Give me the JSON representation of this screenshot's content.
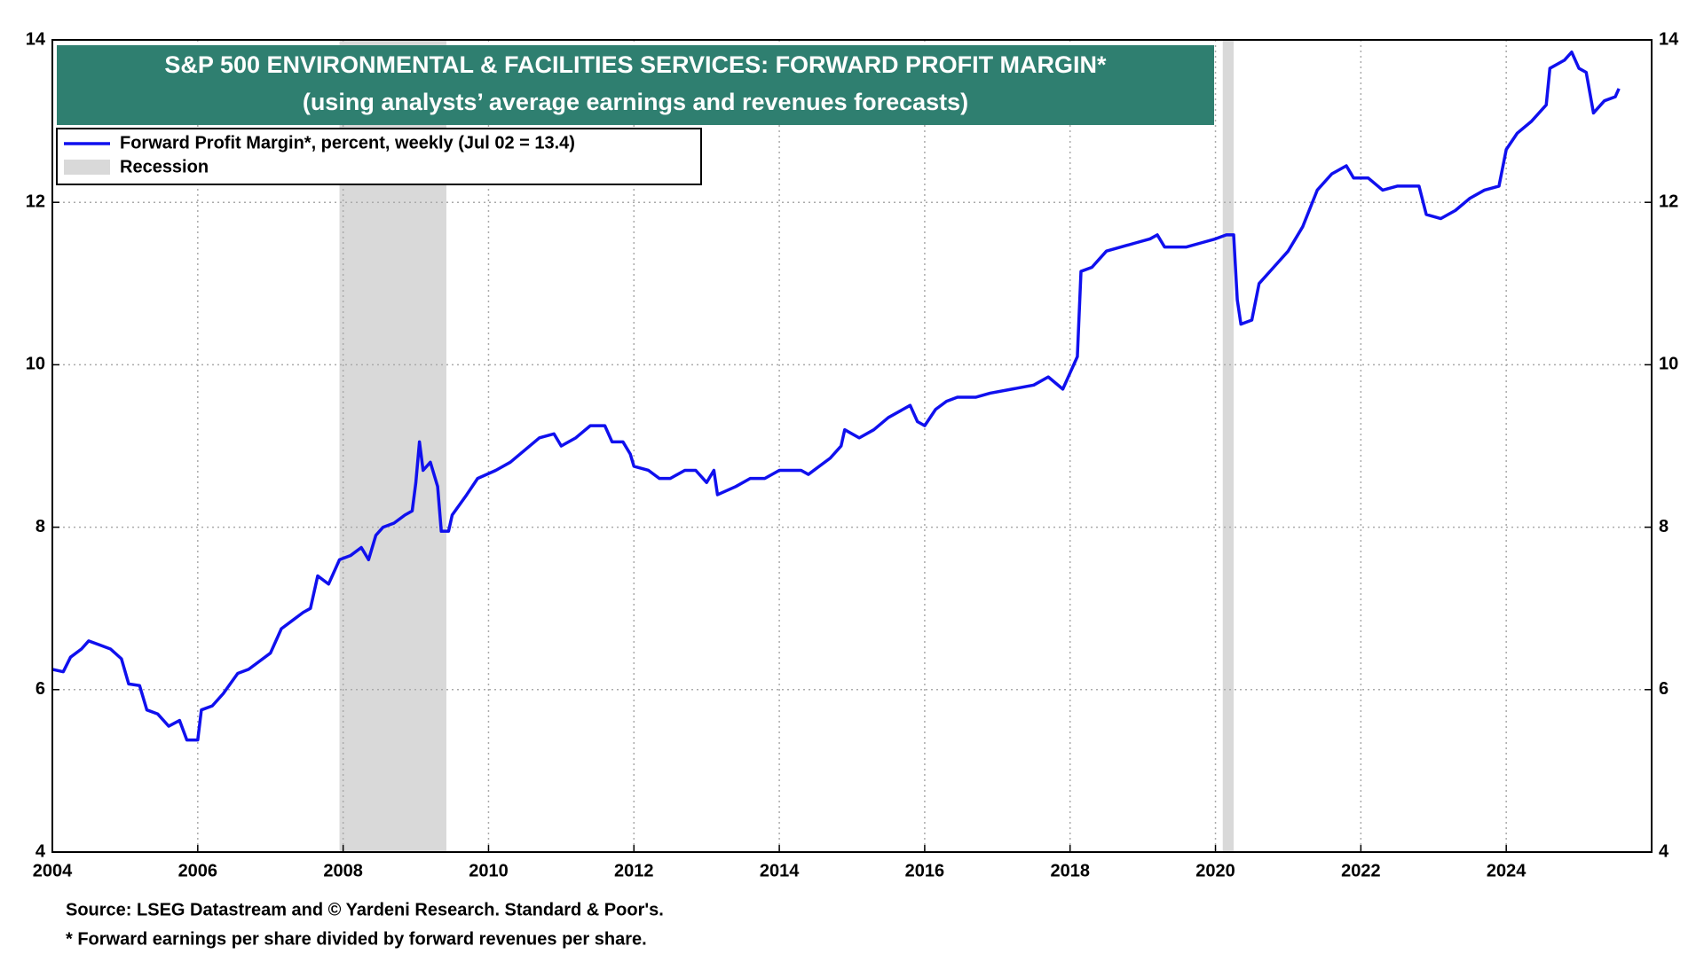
{
  "chart_data": {
    "type": "line",
    "title": "S&P 500 ENVIRONMENTAL & FACILITIES SERVICES: FORWARD PROFIT MARGIN*",
    "subtitle": "(using analysts’ average earnings and revenues forecasts)",
    "source": "Source: LSEG Datastream and © Yardeni Research. Standard & Poor's.",
    "footnote": "* Forward earnings per share divided by forward revenues per share.",
    "xlim": [
      2004,
      2026
    ],
    "xticks": [
      2004,
      2006,
      2008,
      2010,
      2012,
      2014,
      2016,
      2018,
      2020,
      2022,
      2024
    ],
    "ylim": [
      4,
      14
    ],
    "yticks": [
      4,
      6,
      8,
      10,
      12,
      14
    ],
    "grid": true,
    "legend": "top-left",
    "recession_name": "Recession",
    "recession_color": "#d9d9d9",
    "recessions": [
      {
        "start": 2007.95,
        "end": 2009.42
      },
      {
        "start": 2020.1,
        "end": 2020.25
      }
    ],
    "series": [
      {
        "name": "Forward Profit Margin*, percent, weekly (Jul 02 = 13.4)",
        "color": "#1010ee",
        "x": [
          2004.0,
          2004.15,
          2004.25,
          2004.4,
          2004.5,
          2004.65,
          2004.8,
          2004.95,
          2005.05,
          2005.2,
          2005.3,
          2005.45,
          2005.6,
          2005.75,
          2005.85,
          2006.0,
          2006.05,
          2006.2,
          2006.35,
          2006.55,
          2006.7,
          2006.85,
          2007.0,
          2007.15,
          2007.3,
          2007.45,
          2007.55,
          2007.65,
          2007.8,
          2007.95,
          2008.1,
          2008.25,
          2008.35,
          2008.45,
          2008.55,
          2008.7,
          2008.85,
          2008.95,
          2009.0,
          2009.05,
          2009.1,
          2009.2,
          2009.3,
          2009.35,
          2009.45,
          2009.5,
          2009.7,
          2009.85,
          2010.1,
          2010.3,
          2010.5,
          2010.7,
          2010.9,
          2011.0,
          2011.2,
          2011.4,
          2011.6,
          2011.7,
          2011.85,
          2011.95,
          2012.0,
          2012.2,
          2012.35,
          2012.5,
          2012.7,
          2012.85,
          2013.0,
          2013.1,
          2013.15,
          2013.4,
          2013.6,
          2013.8,
          2014.0,
          2014.3,
          2014.4,
          2014.55,
          2014.7,
          2014.85,
          2014.9,
          2015.1,
          2015.3,
          2015.5,
          2015.7,
          2015.8,
          2015.9,
          2016.0,
          2016.15,
          2016.3,
          2016.45,
          2016.7,
          2016.9,
          2017.2,
          2017.5,
          2017.7,
          2017.9,
          2018.0,
          2018.1,
          2018.15,
          2018.3,
          2018.5,
          2018.7,
          2018.9,
          2019.1,
          2019.2,
          2019.3,
          2019.6,
          2019.8,
          2020.0,
          2020.15,
          2020.25,
          2020.3,
          2020.35,
          2020.5,
          2020.6,
          2020.8,
          2021.0,
          2021.2,
          2021.4,
          2021.6,
          2021.8,
          2021.9,
          2022.1,
          2022.3,
          2022.5,
          2022.65,
          2022.8,
          2022.9,
          2023.1,
          2023.3,
          2023.5,
          2023.7,
          2023.9,
          2024.0,
          2024.15,
          2024.35,
          2024.55,
          2024.6,
          2024.8,
          2024.9,
          2025.0,
          2025.1,
          2025.2,
          2025.35,
          2025.5,
          2025.55
        ],
        "values": [
          6.25,
          6.22,
          6.4,
          6.5,
          6.6,
          6.55,
          6.5,
          6.38,
          6.07,
          6.05,
          5.75,
          5.7,
          5.55,
          5.62,
          5.38,
          5.38,
          5.75,
          5.8,
          5.95,
          6.2,
          6.25,
          6.35,
          6.45,
          6.75,
          6.85,
          6.95,
          7.0,
          7.4,
          7.3,
          7.6,
          7.65,
          7.75,
          7.6,
          7.9,
          8.0,
          8.05,
          8.15,
          8.2,
          8.55,
          9.05,
          8.7,
          8.8,
          8.5,
          7.95,
          7.95,
          8.15,
          8.4,
          8.6,
          8.7,
          8.8,
          8.95,
          9.1,
          9.15,
          9.0,
          9.1,
          9.25,
          9.25,
          9.05,
          9.05,
          8.9,
          8.75,
          8.7,
          8.6,
          8.6,
          8.7,
          8.7,
          8.55,
          8.7,
          8.4,
          8.5,
          8.6,
          8.6,
          8.7,
          8.7,
          8.65,
          8.75,
          8.85,
          9.0,
          9.2,
          9.1,
          9.2,
          9.35,
          9.45,
          9.5,
          9.3,
          9.25,
          9.45,
          9.55,
          9.6,
          9.6,
          9.65,
          9.7,
          9.75,
          9.85,
          9.7,
          9.9,
          10.1,
          11.15,
          11.2,
          11.4,
          11.45,
          11.5,
          11.55,
          11.6,
          11.45,
          11.45,
          11.5,
          11.55,
          11.6,
          11.6,
          10.8,
          10.5,
          10.55,
          11.0,
          11.2,
          11.4,
          11.7,
          12.15,
          12.35,
          12.45,
          12.3,
          12.3,
          12.15,
          12.2,
          12.2,
          12.2,
          11.85,
          11.8,
          11.9,
          12.05,
          12.15,
          12.2,
          12.65,
          12.85,
          13.0,
          13.2,
          13.65,
          13.75,
          13.85,
          13.65,
          13.6,
          13.1,
          13.25,
          13.3,
          13.4
        ]
      }
    ]
  }
}
